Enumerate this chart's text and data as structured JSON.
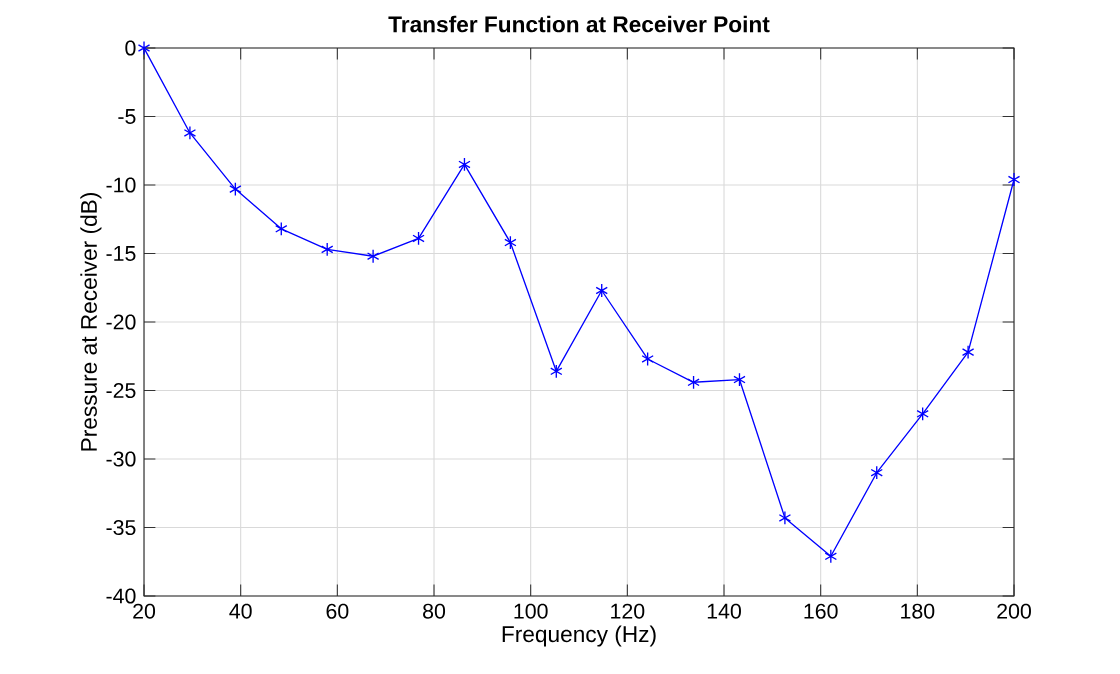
{
  "chart_data": {
    "type": "line",
    "title": "Transfer Function at Receiver Point",
    "xlabel": "Frequency (Hz)",
    "ylabel": "Pressure at Receiver (dB)",
    "x": [
      20,
      29.5,
      38.9,
      48.4,
      57.9,
      67.4,
      76.8,
      86.3,
      95.8,
      105.3,
      114.7,
      124.2,
      133.7,
      143.2,
      152.6,
      162.1,
      171.6,
      181.1,
      190.5,
      200
    ],
    "series": [
      {
        "color": "#0000ff",
        "values": [
          0,
          -6.2,
          -10.3,
          -13.2,
          -14.7,
          -15.2,
          -13.9,
          -8.5,
          -14.2,
          -23.6,
          -17.7,
          -22.7,
          -24.4,
          -24.2,
          -34.3,
          -37.1,
          -31.0,
          -26.7,
          -22.2,
          -9.6
        ]
      }
    ],
    "xlim": [
      20,
      200
    ],
    "ylim": [
      -40,
      0
    ],
    "xticks": [
      20,
      40,
      60,
      80,
      100,
      120,
      140,
      160,
      180,
      200
    ],
    "yticks": [
      -40,
      -35,
      -30,
      -25,
      -20,
      -15,
      -10,
      -5,
      0
    ],
    "grid": true,
    "marker": "cross",
    "line_style": "solid"
  }
}
